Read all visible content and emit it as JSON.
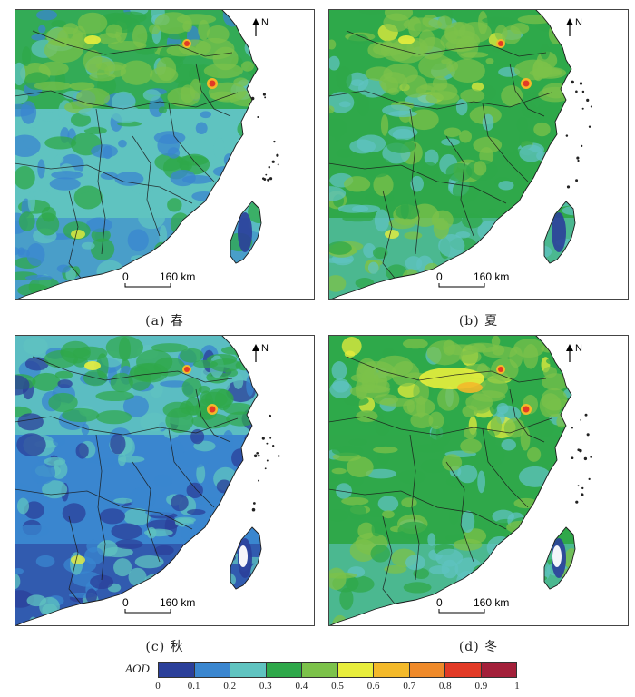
{
  "panels": [
    {
      "caption": "(a) 春",
      "scale_zero": "0",
      "scale_label": "160 km",
      "north": "N",
      "season": "spring"
    },
    {
      "caption": "(b) 夏",
      "scale_zero": "0",
      "scale_label": "160 km",
      "north": "N",
      "season": "summer"
    },
    {
      "caption": "(c) 秋",
      "scale_zero": "0",
      "scale_label": "160 km",
      "north": "N",
      "season": "autumn"
    },
    {
      "caption": "(d) 冬",
      "scale_zero": "0",
      "scale_label": "160 km",
      "north": "N",
      "season": "winter"
    }
  ],
  "legend": {
    "title": "AOD",
    "ticks": [
      "0",
      "0.1",
      "0.2",
      "0.3",
      "0.4",
      "0.5",
      "0.6",
      "0.7",
      "0.8",
      "0.9",
      "1"
    ],
    "colors": [
      "#2b3f9a",
      "#3a86cf",
      "#5fc3c0",
      "#2fa84a",
      "#7cc24a",
      "#e8ee3c",
      "#f3b92a",
      "#ef8a2a",
      "#e23a26",
      "#a3203a"
    ]
  },
  "colors": {
    "sea": "#ffffff",
    "border": "#1a1a1a",
    "coast": "#9a2a1a"
  }
}
